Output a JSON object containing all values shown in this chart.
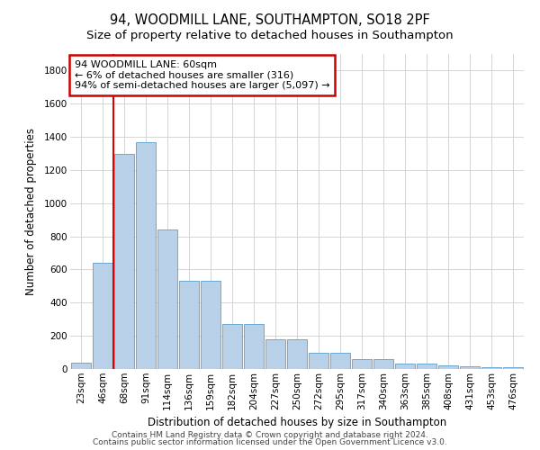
{
  "title1": "94, WOODMILL LANE, SOUTHAMPTON, SO18 2PF",
  "title2": "Size of property relative to detached houses in Southampton",
  "xlabel": "Distribution of detached houses by size in Southampton",
  "ylabel": "Number of detached properties",
  "categories": [
    "23sqm",
    "46sqm",
    "68sqm",
    "91sqm",
    "114sqm",
    "136sqm",
    "159sqm",
    "182sqm",
    "204sqm",
    "227sqm",
    "250sqm",
    "272sqm",
    "295sqm",
    "317sqm",
    "340sqm",
    "363sqm",
    "385sqm",
    "408sqm",
    "431sqm",
    "453sqm",
    "476sqm"
  ],
  "values": [
    40,
    640,
    1300,
    1370,
    840,
    530,
    530,
    270,
    270,
    180,
    180,
    100,
    100,
    60,
    60,
    30,
    30,
    20,
    15,
    10,
    10
  ],
  "bar_color": "#b8d0e8",
  "bar_edge_color": "#6aaad4",
  "red_line_x": 1.5,
  "annotation_line1": "94 WOODMILL LANE: 60sqm",
  "annotation_line2": "← 6% of detached houses are smaller (316)",
  "annotation_line3": "94% of semi-detached houses are larger (5,097) →",
  "annotation_box_color": "#ffffff",
  "annotation_box_edge": "#cc0000",
  "ylim": [
    0,
    1900
  ],
  "yticks": [
    0,
    200,
    400,
    600,
    800,
    1000,
    1200,
    1400,
    1600,
    1800
  ],
  "footer1": "Contains HM Land Registry data © Crown copyright and database right 2024.",
  "footer2": "Contains public sector information licensed under the Open Government Licence v3.0.",
  "bg_color": "#ffffff",
  "grid_color": "#d0d0d0",
  "title1_fontsize": 10.5,
  "title2_fontsize": 9.5,
  "xlabel_fontsize": 8.5,
  "ylabel_fontsize": 8.5,
  "tick_fontsize": 7.5,
  "annotation_fontsize": 8,
  "footer_fontsize": 6.5,
  "red_line_color": "#dd0000"
}
